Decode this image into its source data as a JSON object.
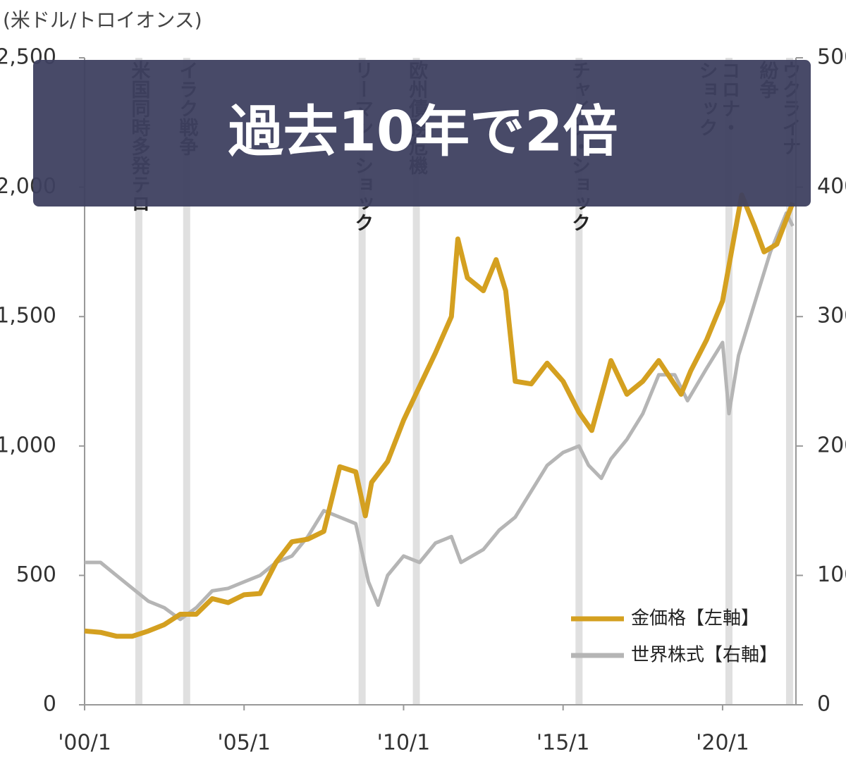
{
  "chart_data": {
    "type": "line",
    "unit_label": "(米ドル/トロイオンス)",
    "banner": "過去10年で2倍",
    "xlim": [
      2000,
      2022.3
    ],
    "xticks": [
      {
        "value": 2000,
        "label": "'00/1"
      },
      {
        "value": 2005,
        "label": "'05/1"
      },
      {
        "value": 2010,
        "label": "'10/1"
      },
      {
        "value": 2015,
        "label": "'15/1"
      },
      {
        "value": 2020,
        "label": "'20/1"
      }
    ],
    "ylim": [
      0,
      2500
    ],
    "yticks": [
      0,
      500,
      {
        "value": 1000,
        "label": "1,000"
      },
      {
        "value": 1500,
        "label": "1,500"
      },
      {
        "value": 2000,
        "label": "2,000"
      },
      {
        "value": 2500,
        "label": "2,500"
      }
    ],
    "y2lim": [
      0,
      500
    ],
    "y2ticks": [
      0,
      100,
      200,
      300,
      400,
      500
    ],
    "series": [
      {
        "name": "世界株式【右軸】",
        "color": "#b5b5b5",
        "axis": "y2",
        "x": [
          2000.0,
          2000.5,
          2001.0,
          2001.5,
          2002.0,
          2002.5,
          2003.0,
          2003.5,
          2004.0,
          2004.5,
          2005.0,
          2005.5,
          2006.0,
          2006.5,
          2007.0,
          2007.5,
          2008.0,
          2008.5,
          2008.9,
          2009.2,
          2009.5,
          2010.0,
          2010.5,
          2011.0,
          2011.5,
          2011.8,
          2012.5,
          2013.0,
          2013.5,
          2014.0,
          2014.5,
          2015.0,
          2015.5,
          2015.8,
          2016.2,
          2016.5,
          2017.0,
          2017.5,
          2018.0,
          2018.5,
          2018.9,
          2019.5,
          2020.0,
          2020.2,
          2020.5,
          2021.0,
          2021.5,
          2022.0,
          2022.2
        ],
        "values": [
          110,
          110,
          100,
          90,
          80,
          75,
          66,
          75,
          88,
          90,
          95,
          100,
          110,
          115,
          130,
          150,
          145,
          140,
          95,
          77,
          100,
          115,
          110,
          125,
          130,
          110,
          120,
          135,
          145,
          165,
          185,
          195,
          200,
          185,
          175,
          190,
          205,
          225,
          255,
          255,
          235,
          260,
          280,
          225,
          270,
          310,
          350,
          380,
          370
        ]
      },
      {
        "name": "金価格【左軸】",
        "color": "#d4a020",
        "axis": "y",
        "x": [
          2000.0,
          2000.5,
          2001.0,
          2001.5,
          2002.0,
          2002.5,
          2003.0,
          2003.5,
          2004.0,
          2004.5,
          2005.0,
          2005.5,
          2006.0,
          2006.5,
          2007.0,
          2007.5,
          2008.0,
          2008.5,
          2008.8,
          2009.0,
          2009.5,
          2010.0,
          2010.5,
          2011.0,
          2011.5,
          2011.7,
          2012.0,
          2012.5,
          2012.9,
          2013.2,
          2013.5,
          2014.0,
          2014.5,
          2015.0,
          2015.5,
          2015.9,
          2016.5,
          2017.0,
          2017.5,
          2018.0,
          2018.7,
          2019.0,
          2019.5,
          2020.0,
          2020.6,
          2021.0,
          2021.3,
          2021.7,
          2022.2
        ],
        "values": [
          285,
          280,
          265,
          265,
          285,
          310,
          350,
          350,
          410,
          395,
          425,
          430,
          550,
          630,
          640,
          670,
          920,
          900,
          730,
          860,
          940,
          1100,
          1230,
          1360,
          1500,
          1800,
          1650,
          1600,
          1720,
          1600,
          1250,
          1240,
          1320,
          1250,
          1130,
          1060,
          1330,
          1200,
          1250,
          1330,
          1200,
          1290,
          1410,
          1560,
          1970,
          1850,
          1750,
          1780,
          1940
        ]
      }
    ],
    "events": [
      {
        "x": 2001.7,
        "lines": [
          "米国同時多発テロ"
        ]
      },
      {
        "x": 2003.2,
        "lines": [
          "イラク戦争"
        ]
      },
      {
        "x": 2008.7,
        "lines": [
          "リーマン・ショック"
        ]
      },
      {
        "x": 2010.4,
        "lines": [
          "欧州債務危機"
        ]
      },
      {
        "x": 2015.5,
        "lines": [
          "チャイナ・ショック"
        ]
      },
      {
        "x": 2020.2,
        "lines": [
          "コロナ・",
          "ショック"
        ]
      },
      {
        "x": 2022.1,
        "lines": [
          "ウクライナ",
          "紛争"
        ]
      }
    ]
  }
}
